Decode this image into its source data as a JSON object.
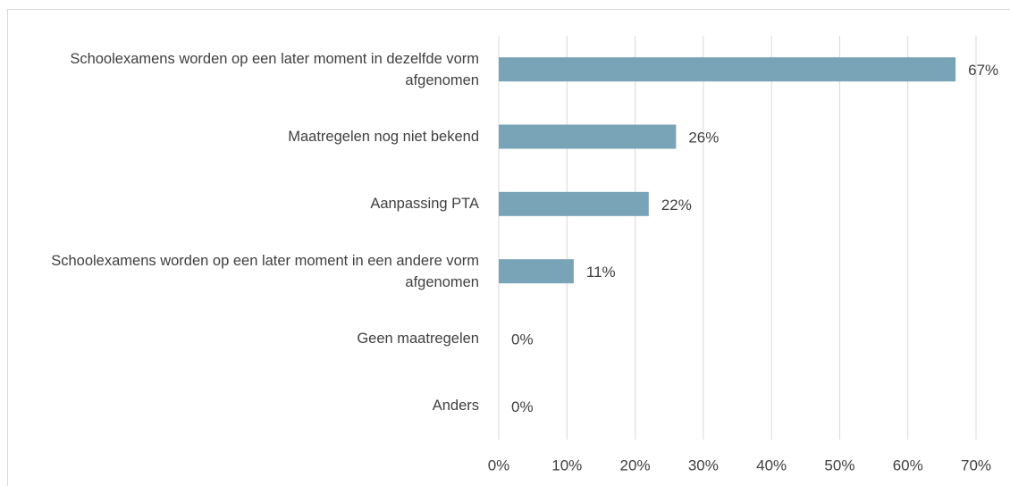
{
  "chart_data": {
    "type": "hbar",
    "categories": [
      "Schoolexamens worden op een later moment in dezelfde vorm afgenomen",
      "Maatregelen nog niet bekend",
      "Aanpassing PTA",
      "Schoolexamens worden op een later moment in een andere vorm afgenomen",
      "Geen maatregelen",
      "Anders"
    ],
    "values": [
      67,
      26,
      22,
      11,
      0,
      0
    ],
    "value_labels": [
      "67%",
      "26%",
      "22%",
      "11%",
      "0%",
      "0%"
    ],
    "color": "#79a3b7",
    "xlim": [
      0,
      70
    ],
    "xticks": [
      {
        "value": 0,
        "label": "0%"
      },
      {
        "value": 10,
        "label": "10%"
      },
      {
        "value": 20,
        "label": "20%"
      },
      {
        "value": 30,
        "label": "30%"
      },
      {
        "value": 40,
        "label": "40%"
      },
      {
        "value": 50,
        "label": "50%"
      },
      {
        "value": 60,
        "label": "60%"
      },
      {
        "value": 70,
        "label": "70%"
      }
    ],
    "grid": true
  }
}
